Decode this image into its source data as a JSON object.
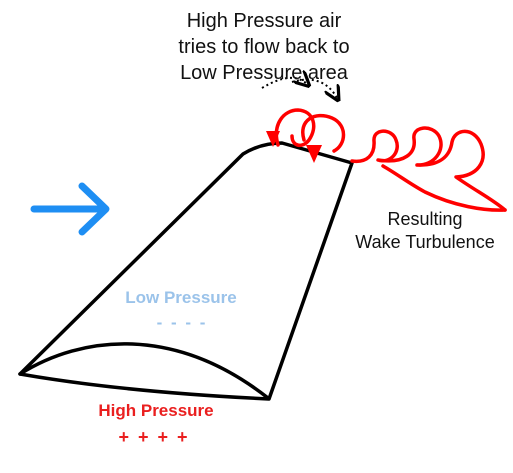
{
  "labels": {
    "top_note": [
      "High Pressure air",
      "tries to flow back to",
      "Low Pressure area"
    ],
    "wake_note": [
      "Resulting",
      "Wake Turbulence"
    ],
    "low_pressure": "Low Pressure",
    "low_signs": "- - - -",
    "high_pressure": "High Pressure",
    "high_signs": "+ + + +"
  },
  "colors": {
    "airflow_arrow": "#1e8ef3",
    "vortex": "#ff0000",
    "wing_outline": "#000000",
    "low_pressure_text": "#9bc3ea",
    "high_pressure_text": "#ea1f1f"
  },
  "icons": {
    "airflow": "right-arrow-icon",
    "flow_back": "curved-arrow-icon"
  }
}
